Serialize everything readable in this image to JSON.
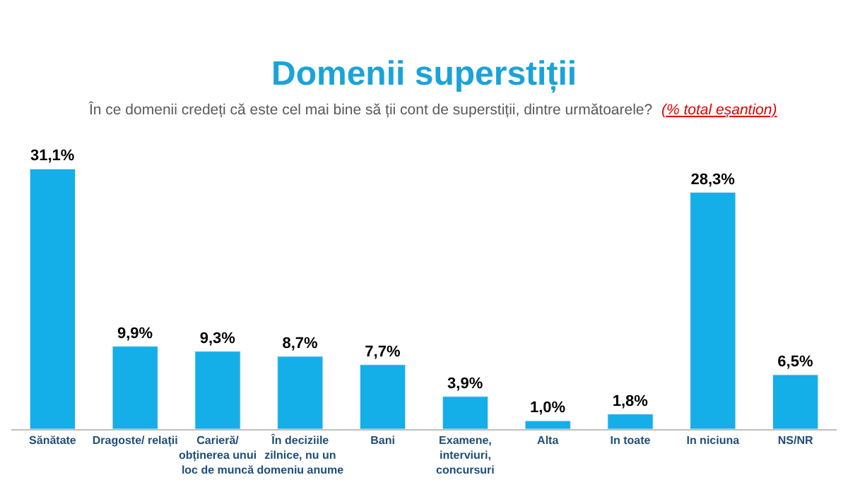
{
  "chart_data": {
    "type": "bar",
    "title": "Domenii superstiții",
    "subtitle": "În ce domenii credeți că este cel mai bine să ții cont de superstiții, dintre următoarele?",
    "annotations": [
      "(% total eșantion)"
    ],
    "categories": [
      "Sănătate",
      "Dragoste/ relații",
      "Carieră/ obținerea unui loc de muncă",
      "În deciziile zilnice, nu un domeniu anume",
      "Bani",
      "Examene, interviuri, concursuri",
      "Alta",
      "In toate",
      "In niciuna",
      "NS/NR"
    ],
    "values": [
      31.1,
      9.9,
      9.3,
      8.7,
      7.7,
      3.9,
      1.0,
      1.8,
      28.3,
      6.5
    ],
    "value_labels": [
      "31,1%",
      "9,9%",
      "9,3%",
      "8,7%",
      "7,7%",
      "3,9%",
      "1,0%",
      "1,8%",
      "28,3%",
      "6,5%"
    ],
    "color": "#14aee8",
    "tick_labels": "x",
    "legend": false
  }
}
